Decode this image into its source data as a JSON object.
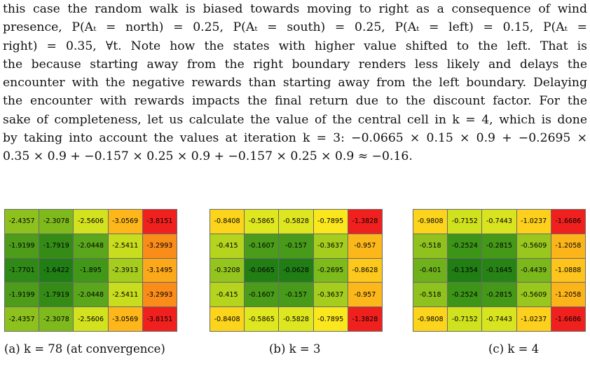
{
  "paragraph": [
    "this case the random walk is biased towards moving to right as a consequence of wind",
    "presence, P(Aₜ = north) = 0.25, P(Aₜ = south) = 0.25, P(Aₜ = left) = 0.15, P(Aₜ =",
    "right) = 0.35, ∀t.  Note how the states with higher value shifted to the left.  That is",
    "the because starting away from the right boundary renders less likely and delays the",
    "encounter with the negative rewards than starting away from the left boundary. Delaying",
    "the encounter with rewards impacts the final return due to the discount factor. For the",
    "sake of completeness, let us calculate the value of the central cell in k = 4, which is done",
    "by taking into account the values at iteration k = 3:  −0.0665 × 0.15 × 0.9 + −0.2695 ×",
    "0.35 × 0.9 + −0.157 × 0.25 × 0.9 + −0.157 × 0.25 × 0.9 ≈ −0.16."
  ],
  "grids": [
    {
      "caption": "(a) k = 78 (at convergence)",
      "rows": [
        [
          {
            "v": "-2.4357",
            "c": "#8cc11e"
          },
          {
            "v": "-2.3078",
            "c": "#7fba1c"
          },
          {
            "v": "-2.5606",
            "c": "#d2e21e"
          },
          {
            "v": "-3.0569",
            "c": "#fdb71b"
          },
          {
            "v": "-3.8151",
            "c": "#f0201e"
          }
        ],
        [
          {
            "v": "-1.9199",
            "c": "#4d9d1b"
          },
          {
            "v": "-1.7919",
            "c": "#348c17"
          },
          {
            "v": "-2.0448",
            "c": "#5aa61d"
          },
          {
            "v": "-2.5411",
            "c": "#c7dd1d"
          },
          {
            "v": "-3.2993",
            "c": "#fa8c1a"
          }
        ],
        [
          {
            "v": "-1.7701",
            "c": "#2f8917"
          },
          {
            "v": "-1.6422",
            "c": "#207e14"
          },
          {
            "v": "-1.895",
            "c": "#409718"
          },
          {
            "v": "-2.3913",
            "c": "#a5cd1e"
          },
          {
            "v": "-3.1495",
            "c": "#fca81b"
          }
        ],
        [
          {
            "v": "-1.9199",
            "c": "#4d9d1b"
          },
          {
            "v": "-1.7919",
            "c": "#348c17"
          },
          {
            "v": "-2.0448",
            "c": "#5aa61d"
          },
          {
            "v": "-2.5411",
            "c": "#c7dd1d"
          },
          {
            "v": "-3.2993",
            "c": "#fa8c1a"
          }
        ],
        [
          {
            "v": "-2.4357",
            "c": "#8cc11e"
          },
          {
            "v": "-2.3078",
            "c": "#7fba1c"
          },
          {
            "v": "-2.5606",
            "c": "#d2e21e"
          },
          {
            "v": "-3.0569",
            "c": "#fdb71b"
          },
          {
            "v": "-3.8151",
            "c": "#f0201e"
          }
        ]
      ]
    },
    {
      "caption": "(b) k = 3",
      "rows": [
        [
          {
            "v": "-0.8408",
            "c": "#fcd41c"
          },
          {
            "v": "-0.5865",
            "c": "#dfe71f"
          },
          {
            "v": "-0.5828",
            "c": "#dde61f"
          },
          {
            "v": "-0.7895",
            "c": "#fae71e"
          },
          {
            "v": "-1.3828",
            "c": "#f0201e"
          }
        ],
        [
          {
            "v": "-0.415",
            "c": "#b4d41e"
          },
          {
            "v": "-0.1607",
            "c": "#4a9c1a"
          },
          {
            "v": "-0.157",
            "c": "#479a1a"
          },
          {
            "v": "-0.3637",
            "c": "#a5cd1e"
          },
          {
            "v": "-0.957",
            "c": "#fcb81b"
          }
        ],
        [
          {
            "v": "-0.3208",
            "c": "#94c51e"
          },
          {
            "v": "-0.0665",
            "c": "#227f14"
          },
          {
            "v": "-0.0628",
            "c": "#207e14"
          },
          {
            "v": "-0.2695",
            "c": "#7dba1c"
          },
          {
            "v": "-0.8628",
            "c": "#fcc81c"
          }
        ],
        [
          {
            "v": "-0.415",
            "c": "#b4d41e"
          },
          {
            "v": "-0.1607",
            "c": "#4a9c1a"
          },
          {
            "v": "-0.157",
            "c": "#479a1a"
          },
          {
            "v": "-0.3637",
            "c": "#a5cd1e"
          },
          {
            "v": "-0.957",
            "c": "#fcb81b"
          }
        ],
        [
          {
            "v": "-0.8408",
            "c": "#fcd41c"
          },
          {
            "v": "-0.5865",
            "c": "#dfe71f"
          },
          {
            "v": "-0.5828",
            "c": "#dde61f"
          },
          {
            "v": "-0.7895",
            "c": "#fae71e"
          },
          {
            "v": "-1.3828",
            "c": "#f0201e"
          }
        ]
      ]
    },
    {
      "caption": "(c) k = 4",
      "rows": [
        [
          {
            "v": "-0.9808",
            "c": "#fcd41c"
          },
          {
            "v": "-0.7152",
            "c": "#d0e11e"
          },
          {
            "v": "-0.7443",
            "c": "#d8e41f"
          },
          {
            "v": "-1.0237",
            "c": "#fcd01c"
          },
          {
            "v": "-1.6686",
            "c": "#f0201e"
          }
        ],
        [
          {
            "v": "-0.518",
            "c": "#8fc21e"
          },
          {
            "v": "-0.2524",
            "c": "#3d9518"
          },
          {
            "v": "-0.2815",
            "c": "#459919"
          },
          {
            "v": "-0.5609",
            "c": "#99c71e"
          },
          {
            "v": "-1.2058",
            "c": "#fcb41b"
          }
        ],
        [
          {
            "v": "-0.401",
            "c": "#6fb11c"
          },
          {
            "v": "-0.1354",
            "c": "#207e14"
          },
          {
            "v": "-0.1645",
            "c": "#288316"
          },
          {
            "v": "-0.4439",
            "c": "#7ab81c"
          },
          {
            "v": "-1.0888",
            "c": "#fcc41c"
          }
        ],
        [
          {
            "v": "-0.518",
            "c": "#8fc21e"
          },
          {
            "v": "-0.2524",
            "c": "#3d9518"
          },
          {
            "v": "-0.2815",
            "c": "#459919"
          },
          {
            "v": "-0.5609",
            "c": "#99c71e"
          },
          {
            "v": "-1.2058",
            "c": "#fcb41b"
          }
        ],
        [
          {
            "v": "-0.9808",
            "c": "#fcd41c"
          },
          {
            "v": "-0.7152",
            "c": "#d0e11e"
          },
          {
            "v": "-0.7443",
            "c": "#d8e41f"
          },
          {
            "v": "-1.0237",
            "c": "#fcd01c"
          },
          {
            "v": "-1.6686",
            "c": "#f0201e"
          }
        ]
      ]
    }
  ]
}
